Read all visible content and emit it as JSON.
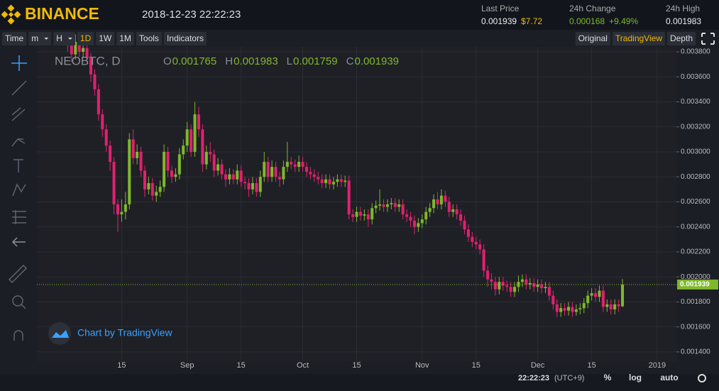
{
  "header": {
    "brand": "BINANCE",
    "datetime": "2018-12-23 22:22:23",
    "stats": [
      {
        "label": "Last Price",
        "value": "0.001939",
        "extra": "$7.72"
      },
      {
        "label": "24h Change",
        "value": "0.000168",
        "extra": "+9.49%"
      },
      {
        "label": "24h High",
        "value": "0.001983"
      }
    ]
  },
  "toolbar": {
    "left": [
      "Time",
      "m",
      "H",
      "1D",
      "1W",
      "1M",
      "Tools",
      "Indicators"
    ],
    "right": [
      "Original",
      "TradingView",
      "Depth"
    ]
  },
  "legend": {
    "symbol": "NEOBTC, D",
    "ohlc": [
      {
        "label": "O",
        "value": "0.001765"
      },
      {
        "label": "H",
        "value": "0.001983"
      },
      {
        "label": "L",
        "value": "0.001759"
      },
      {
        "label": "C",
        "value": "0.001939"
      }
    ]
  },
  "watermark": "Chart by TradingView",
  "footer": {
    "time": "22:22:23",
    "zone": "(UTC+9)",
    "buttons": [
      "%",
      "log",
      "auto"
    ]
  },
  "chart_data": {
    "type": "candlestick",
    "up_color": "#7fb82b",
    "down_color": "#e2206f",
    "grid": true,
    "ylim": [
      0.00132,
      0.00384
    ],
    "xlim": [
      -8,
      158
    ],
    "yticks": [
      {
        "value": 0.0014,
        "label": "0.001400"
      },
      {
        "value": 0.0016,
        "label": "0.001600"
      },
      {
        "value": 0.0018,
        "label": "0.001800"
      },
      {
        "value": 0.002,
        "label": "0.002000"
      },
      {
        "value": 0.0022,
        "label": "0.002200"
      },
      {
        "value": 0.0024,
        "label": "0.002400"
      },
      {
        "value": 0.0026,
        "label": "0.002600"
      },
      {
        "value": 0.0028,
        "label": "0.002800"
      },
      {
        "value": 0.003,
        "label": "0.003000"
      },
      {
        "value": 0.0032,
        "label": "0.003200"
      },
      {
        "value": 0.0034,
        "label": "0.003400"
      },
      {
        "value": 0.0036,
        "label": "0.003600"
      },
      {
        "value": 0.0038,
        "label": "0.003800"
      }
    ],
    "xticks": [
      {
        "value": 14,
        "label": "15"
      },
      {
        "value": 31,
        "label": "Sep"
      },
      {
        "value": 45,
        "label": "15"
      },
      {
        "value": 61,
        "label": "Oct"
      },
      {
        "value": 75,
        "label": "15"
      },
      {
        "value": 92,
        "label": "Nov"
      },
      {
        "value": 106,
        "label": "15"
      },
      {
        "value": 122,
        "label": "Dec"
      },
      {
        "value": 136,
        "label": "15"
      },
      {
        "value": 153,
        "label": "2019"
      }
    ],
    "last_price": {
      "value": 0.001939,
      "label": "0.001939"
    },
    "candles": [
      [
        0.0039,
        0.00396,
        0.0038,
        0.00385
      ],
      [
        0.00385,
        0.0039,
        0.00372,
        0.00378
      ],
      [
        0.00378,
        0.00394,
        0.00374,
        0.00388
      ],
      [
        0.00388,
        0.00392,
        0.00376,
        0.0038
      ],
      [
        0.0038,
        0.0039,
        0.00376,
        0.00383
      ],
      [
        0.00383,
        0.00387,
        0.0037,
        0.00375
      ],
      [
        0.00375,
        0.00379,
        0.00356,
        0.00362
      ],
      [
        0.00362,
        0.00366,
        0.00345,
        0.0035
      ],
      [
        0.0035,
        0.00354,
        0.00325,
        0.0033
      ],
      [
        0.0033,
        0.00334,
        0.00312,
        0.00318
      ],
      [
        0.00318,
        0.00322,
        0.003,
        0.00305
      ],
      [
        0.00305,
        0.00309,
        0.00285,
        0.00292
      ],
      [
        0.00292,
        0.00296,
        0.0025,
        0.00258
      ],
      [
        0.00258,
        0.00262,
        0.00236,
        0.0025
      ],
      [
        0.0025,
        0.00262,
        0.00244,
        0.00252
      ],
      [
        0.00252,
        0.00268,
        0.00246,
        0.00258
      ],
      [
        0.00258,
        0.00315,
        0.00254,
        0.0031
      ],
      [
        0.0031,
        0.00318,
        0.0029,
        0.00295
      ],
      [
        0.00295,
        0.00306,
        0.0029,
        0.003
      ],
      [
        0.003,
        0.00304,
        0.0028,
        0.00285
      ],
      [
        0.00285,
        0.00289,
        0.00264,
        0.0027
      ],
      [
        0.0027,
        0.0028,
        0.00266,
        0.00275
      ],
      [
        0.00275,
        0.00279,
        0.00261,
        0.00265
      ],
      [
        0.00265,
        0.00273,
        0.0026,
        0.00268
      ],
      [
        0.00268,
        0.00277,
        0.00264,
        0.00272
      ],
      [
        0.00272,
        0.00306,
        0.00268,
        0.003
      ],
      [
        0.003,
        0.00304,
        0.0028,
        0.00285
      ],
      [
        0.00285,
        0.00289,
        0.00275,
        0.0028
      ],
      [
        0.0028,
        0.00287,
        0.00276,
        0.00282
      ],
      [
        0.00282,
        0.00303,
        0.00278,
        0.00298
      ],
      [
        0.00298,
        0.0031,
        0.00294,
        0.00305
      ],
      [
        0.00305,
        0.00324,
        0.003,
        0.00318
      ],
      [
        0.00318,
        0.00322,
        0.00296,
        0.003
      ],
      [
        0.003,
        0.0034,
        0.00296,
        0.0033
      ],
      [
        0.0033,
        0.00336,
        0.00312,
        0.00318
      ],
      [
        0.00318,
        0.00322,
        0.00284,
        0.0029
      ],
      [
        0.0029,
        0.00305,
        0.00286,
        0.003
      ],
      [
        0.003,
        0.00308,
        0.00292,
        0.00298
      ],
      [
        0.00298,
        0.00302,
        0.0028,
        0.00285
      ],
      [
        0.00285,
        0.00295,
        0.00281,
        0.0029
      ],
      [
        0.0029,
        0.00294,
        0.00278,
        0.00282
      ],
      [
        0.00282,
        0.00286,
        0.00272,
        0.00278
      ],
      [
        0.00278,
        0.00287,
        0.00274,
        0.00282
      ],
      [
        0.00282,
        0.00286,
        0.00274,
        0.00278
      ],
      [
        0.00278,
        0.0029,
        0.00274,
        0.00285
      ],
      [
        0.00285,
        0.00289,
        0.00272,
        0.00276
      ],
      [
        0.00276,
        0.0028,
        0.0027,
        0.00275
      ],
      [
        0.00275,
        0.00279,
        0.00264,
        0.0027
      ],
      [
        0.0027,
        0.0028,
        0.00266,
        0.00275
      ],
      [
        0.00275,
        0.00279,
        0.00264,
        0.00268
      ],
      [
        0.00268,
        0.00285,
        0.00264,
        0.0028
      ],
      [
        0.0028,
        0.003,
        0.00276,
        0.00292
      ],
      [
        0.00292,
        0.00296,
        0.00276,
        0.0028
      ],
      [
        0.0028,
        0.00293,
        0.00276,
        0.00288
      ],
      [
        0.00288,
        0.00292,
        0.00276,
        0.0028
      ],
      [
        0.0028,
        0.00284,
        0.00272,
        0.00278
      ],
      [
        0.00278,
        0.00293,
        0.00274,
        0.00288
      ],
      [
        0.00288,
        0.00308,
        0.00284,
        0.00292
      ],
      [
        0.00292,
        0.00296,
        0.00286,
        0.0029
      ],
      [
        0.0029,
        0.00294,
        0.00284,
        0.00288
      ],
      [
        0.00288,
        0.00297,
        0.00284,
        0.00292
      ],
      [
        0.00292,
        0.00296,
        0.00284,
        0.00288
      ],
      [
        0.00288,
        0.00292,
        0.0028,
        0.00284
      ],
      [
        0.00284,
        0.00288,
        0.00278,
        0.00282
      ],
      [
        0.00282,
        0.00286,
        0.00276,
        0.0028
      ],
      [
        0.0028,
        0.00284,
        0.00274,
        0.00278
      ],
      [
        0.00278,
        0.00282,
        0.00271,
        0.00275
      ],
      [
        0.00275,
        0.00282,
        0.00271,
        0.00278
      ],
      [
        0.00278,
        0.00282,
        0.0027,
        0.00274
      ],
      [
        0.00274,
        0.0028,
        0.0027,
        0.00276
      ],
      [
        0.00276,
        0.00282,
        0.00272,
        0.00278
      ],
      [
        0.00278,
        0.00282,
        0.00272,
        0.00276
      ],
      [
        0.00276,
        0.00281,
        0.00272,
        0.00277
      ],
      [
        0.00277,
        0.00281,
        0.00246,
        0.0025
      ],
      [
        0.0025,
        0.00254,
        0.00244,
        0.00248
      ],
      [
        0.00248,
        0.00256,
        0.00244,
        0.00252
      ],
      [
        0.00252,
        0.00256,
        0.00245,
        0.00249
      ],
      [
        0.00249,
        0.00254,
        0.00245,
        0.0025
      ],
      [
        0.0025,
        0.00254,
        0.0024,
        0.00246
      ],
      [
        0.00246,
        0.00259,
        0.00242,
        0.00255
      ],
      [
        0.00255,
        0.00261,
        0.00251,
        0.00257
      ],
      [
        0.00257,
        0.0027,
        0.00253,
        0.00258
      ],
      [
        0.00258,
        0.00262,
        0.00252,
        0.00256
      ],
      [
        0.00256,
        0.00262,
        0.00252,
        0.00258
      ],
      [
        0.00258,
        0.00263,
        0.00254,
        0.00259
      ],
      [
        0.00259,
        0.00263,
        0.00252,
        0.00256
      ],
      [
        0.00256,
        0.00262,
        0.00252,
        0.00258
      ],
      [
        0.00258,
        0.00262,
        0.00246,
        0.0025
      ],
      [
        0.0025,
        0.00254,
        0.00244,
        0.00248
      ],
      [
        0.00248,
        0.00252,
        0.0024,
        0.00245
      ],
      [
        0.00245,
        0.00249,
        0.00234,
        0.0024
      ],
      [
        0.0024,
        0.00247,
        0.00236,
        0.00243
      ],
      [
        0.00243,
        0.0025,
        0.00239,
        0.00246
      ],
      [
        0.00246,
        0.00256,
        0.00242,
        0.00252
      ],
      [
        0.00252,
        0.00259,
        0.00248,
        0.00255
      ],
      [
        0.00255,
        0.00266,
        0.00251,
        0.00262
      ],
      [
        0.00262,
        0.00268,
        0.00254,
        0.00258
      ],
      [
        0.00258,
        0.0027,
        0.00254,
        0.00265
      ],
      [
        0.00265,
        0.00269,
        0.00256,
        0.0026
      ],
      [
        0.0026,
        0.00264,
        0.00248,
        0.00252
      ],
      [
        0.00252,
        0.00258,
        0.00248,
        0.00254
      ],
      [
        0.00254,
        0.00258,
        0.00246,
        0.0025
      ],
      [
        0.0025,
        0.00254,
        0.00241,
        0.00245
      ],
      [
        0.00245,
        0.00249,
        0.00234,
        0.00238
      ],
      [
        0.00238,
        0.00242,
        0.00228,
        0.00232
      ],
      [
        0.00232,
        0.00236,
        0.00224,
        0.00228
      ],
      [
        0.00228,
        0.00232,
        0.00222,
        0.00226
      ],
      [
        0.00226,
        0.0023,
        0.00218,
        0.00222
      ],
      [
        0.00222,
        0.00226,
        0.002,
        0.00205
      ],
      [
        0.00205,
        0.00209,
        0.00192,
        0.00198
      ],
      [
        0.00198,
        0.00203,
        0.0019,
        0.00196
      ],
      [
        0.00196,
        0.002,
        0.00185,
        0.0019
      ],
      [
        0.0019,
        0.002,
        0.00186,
        0.00196
      ],
      [
        0.00196,
        0.002,
        0.00189,
        0.00193
      ],
      [
        0.00193,
        0.00197,
        0.00188,
        0.00192
      ],
      [
        0.00192,
        0.00196,
        0.00184,
        0.00188
      ],
      [
        0.00188,
        0.00196,
        0.00184,
        0.00192
      ],
      [
        0.00192,
        0.00201,
        0.00188,
        0.00196
      ],
      [
        0.00196,
        0.00202,
        0.00192,
        0.00198
      ],
      [
        0.00198,
        0.00202,
        0.0019,
        0.00194
      ],
      [
        0.00194,
        0.00199,
        0.0019,
        0.00195
      ],
      [
        0.00195,
        0.00199,
        0.00188,
        0.00192
      ],
      [
        0.00192,
        0.00198,
        0.00188,
        0.00194
      ],
      [
        0.00194,
        0.00198,
        0.00187,
        0.00191
      ],
      [
        0.00191,
        0.00196,
        0.00187,
        0.00192
      ],
      [
        0.00192,
        0.00196,
        0.00181,
        0.00185
      ],
      [
        0.00185,
        0.00189,
        0.00174,
        0.00178
      ],
      [
        0.00178,
        0.00182,
        0.00168,
        0.00172
      ],
      [
        0.00172,
        0.00179,
        0.00168,
        0.00175
      ],
      [
        0.00175,
        0.00179,
        0.00169,
        0.00173
      ],
      [
        0.00173,
        0.0018,
        0.00169,
        0.00176
      ],
      [
        0.00176,
        0.0018,
        0.00168,
        0.00172
      ],
      [
        0.00172,
        0.00178,
        0.00169,
        0.00174
      ],
      [
        0.00174,
        0.00179,
        0.0017,
        0.00175
      ],
      [
        0.00175,
        0.00183,
        0.00171,
        0.00179
      ],
      [
        0.00179,
        0.00189,
        0.00175,
        0.00185
      ],
      [
        0.00185,
        0.00191,
        0.00181,
        0.00187
      ],
      [
        0.00187,
        0.00191,
        0.0018,
        0.00184
      ],
      [
        0.00184,
        0.00193,
        0.0018,
        0.00189
      ],
      [
        0.00189,
        0.00193,
        0.00172,
        0.00176
      ],
      [
        0.00176,
        0.00182,
        0.00172,
        0.00178
      ],
      [
        0.00178,
        0.00182,
        0.0017,
        0.00174
      ],
      [
        0.00174,
        0.00182,
        0.0017,
        0.00178
      ],
      [
        0.00178,
        0.00182,
        0.00172,
        0.001765
      ],
      [
        0.001765,
        0.001983,
        0.001759,
        0.001939
      ]
    ]
  }
}
